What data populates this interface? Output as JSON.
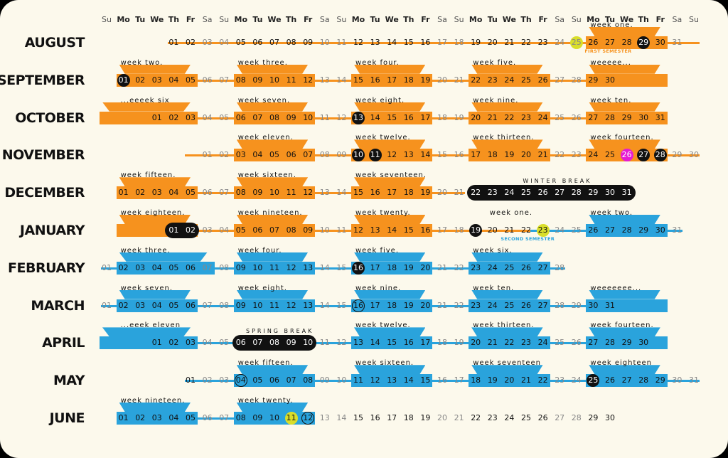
{
  "colors": {
    "fall": "#f6921e",
    "spring": "#2aa3dc",
    "highlight": "#d9de2a",
    "magenta": "#e61bd3",
    "dark": "#111111",
    "background": "#fcf9ec"
  },
  "weekday_headers": [
    "Su",
    "Mo",
    "Tu",
    "We",
    "Th",
    "Fr",
    "Sa",
    "Su",
    "Mo",
    "Tu",
    "We",
    "Th",
    "Fr",
    "Sa",
    "Su",
    "Mo",
    "Tu",
    "We",
    "Th",
    "Fr",
    "Sa",
    "Su",
    "Mo",
    "Tu",
    "We",
    "Th",
    "Fr",
    "Sa",
    "Su",
    "Mo",
    "Tu",
    "We",
    "Th",
    "Fr",
    "Sa",
    "Su"
  ],
  "months": [
    {
      "name": "AUGUST",
      "offset": 4,
      "days": 31,
      "color": "fall",
      "line": [
        4,
        35
      ],
      "blocks": [
        [
          29,
          33
        ]
      ],
      "weeks": [
        {
          "label": "week one.",
          "col": 29
        }
      ],
      "circled": [
        {
          "day": 25,
          "style": "highlight"
        },
        {
          "day": 29,
          "style": "dark"
        }
      ],
      "notes": [
        {
          "text": "FIRST SEMESTER",
          "col": 29,
          "color": "fall"
        }
      ],
      "pills": []
    },
    {
      "name": "SEPTEMBER",
      "offset": 1,
      "days": 30,
      "color": "fall",
      "line": [
        1,
        30
      ],
      "blocks": [
        [
          1,
          5
        ],
        [
          8,
          12
        ],
        [
          15,
          19
        ],
        [
          22,
          26
        ],
        [
          29,
          33
        ]
      ],
      "weeks": [
        {
          "label": "week two.",
          "col": 1
        },
        {
          "label": "week three.",
          "col": 8
        },
        {
          "label": "week four.",
          "col": 15
        },
        {
          "label": "week five.",
          "col": 22
        },
        {
          "label": "weeeee...",
          "col": 29
        }
      ],
      "circled": [
        {
          "day": 1,
          "style": "dark"
        }
      ],
      "notes": [],
      "pills": []
    },
    {
      "name": "OCTOBER",
      "offset": 3,
      "days": 31,
      "color": "fall",
      "line": [
        3,
        33
      ],
      "blocks": [
        [
          0,
          5
        ],
        [
          8,
          12
        ],
        [
          15,
          19
        ],
        [
          22,
          26
        ],
        [
          29,
          33
        ]
      ],
      "weeks": [
        {
          "label": "...eeeek six",
          "col": 1
        },
        {
          "label": "week seven.",
          "col": 8
        },
        {
          "label": "week eight.",
          "col": 15
        },
        {
          "label": "week nine.",
          "col": 22
        },
        {
          "label": "week ten.",
          "col": 29
        }
      ],
      "circled": [
        {
          "day": 13,
          "style": "dark"
        }
      ],
      "notes": [],
      "pills": []
    },
    {
      "name": "NOVEMBER",
      "offset": 6,
      "days": 30,
      "color": "fall",
      "line": [
        5,
        35
      ],
      "blocks": [
        [
          8,
          12
        ],
        [
          15,
          19
        ],
        [
          22,
          26
        ],
        [
          29,
          33
        ]
      ],
      "weeks": [
        {
          "label": "week eleven.",
          "col": 8
        },
        {
          "label": "week twelve.",
          "col": 15
        },
        {
          "label": "week thirteen.",
          "col": 22
        },
        {
          "label": "week fourteen.",
          "col": 29
        }
      ],
      "circled": [
        {
          "day": 10,
          "style": "dark"
        },
        {
          "day": 11,
          "style": "dark"
        },
        {
          "day": 26,
          "style": "magenta"
        },
        {
          "day": 27,
          "style": "dark"
        },
        {
          "day": 28,
          "style": "dark"
        }
      ],
      "notes": [],
      "pills": []
    },
    {
      "name": "DECEMBER",
      "offset": 1,
      "days": 31,
      "color": "fall",
      "line": [
        1,
        21
      ],
      "blocks": [
        [
          1,
          5
        ],
        [
          8,
          12
        ],
        [
          15,
          19
        ]
      ],
      "weeks": [
        {
          "label": "week fifteen.",
          "col": 1
        },
        {
          "label": "week sixteen.",
          "col": 8
        },
        {
          "label": "week seventeen.",
          "col": 15
        }
      ],
      "circled": [],
      "notes": [],
      "pills": [
        {
          "from": 22,
          "to": 31,
          "label": "WINTER BREAK"
        }
      ]
    },
    {
      "name": "JANUARY",
      "offset": 4,
      "days": 31,
      "color": "fall",
      "line": [
        1,
        34
      ],
      "blocks": [
        [
          1,
          5
        ],
        [
          8,
          12
        ],
        [
          15,
          19
        ],
        [
          29,
          33
        ]
      ],
      "blocks_spring_from": 23,
      "weeks": [
        {
          "label": "week eighteen.",
          "col": 1
        },
        {
          "label": "week nineteen.",
          "col": 8
        },
        {
          "label": "week twenty.",
          "col": 15
        },
        {
          "label": "week one.",
          "col": 23
        },
        {
          "label": "week two.",
          "col": 29
        }
      ],
      "circled": [
        {
          "day": 19,
          "style": "dark"
        },
        {
          "day": 23,
          "style": "highlight"
        }
      ],
      "notes": [
        {
          "text": "SECOND SEMESTER",
          "col": 24,
          "color": "spring"
        }
      ],
      "pills": [
        {
          "from": 1,
          "to": 2,
          "label": ""
        }
      ]
    },
    {
      "name": "FEBRUARY",
      "offset": 0,
      "days": 28,
      "color": "spring",
      "line": [
        0,
        27
      ],
      "blocks": [
        [
          1,
          6
        ],
        [
          8,
          12
        ],
        [
          15,
          19
        ],
        [
          22,
          26
        ]
      ],
      "weeks": [
        {
          "label": "week three.",
          "col": 1
        },
        {
          "label": "week four.",
          "col": 8
        },
        {
          "label": "week five.",
          "col": 15
        },
        {
          "label": "week six.",
          "col": 22
        }
      ],
      "circled": [
        {
          "day": 16,
          "style": "dark"
        }
      ],
      "notes": [],
      "pills": []
    },
    {
      "name": "MARCH",
      "offset": 0,
      "days": 31,
      "color": "spring",
      "line": [
        0,
        30
      ],
      "blocks": [
        [
          1,
          5
        ],
        [
          8,
          12
        ],
        [
          15,
          19
        ],
        [
          22,
          26
        ],
        [
          29,
          33
        ]
      ],
      "weeks": [
        {
          "label": "week seven.",
          "col": 1
        },
        {
          "label": "week eight.",
          "col": 8
        },
        {
          "label": "week nine.",
          "col": 15
        },
        {
          "label": "week ten.",
          "col": 22
        },
        {
          "label": "weeeeeee...",
          "col": 29
        }
      ],
      "circled": [
        {
          "day": 16,
          "style": "ring"
        }
      ],
      "notes": [],
      "pills": []
    },
    {
      "name": "APRIL",
      "offset": 3,
      "days": 30,
      "color": "spring",
      "line": [
        3,
        32
      ],
      "blocks": [
        [
          0,
          5
        ],
        [
          15,
          19
        ],
        [
          22,
          26
        ],
        [
          29,
          33
        ]
      ],
      "weeks": [
        {
          "label": "...eeek eleven",
          "col": 1
        },
        {
          "label": "week twelve.",
          "col": 15
        },
        {
          "label": "week thirteen.",
          "col": 22
        },
        {
          "label": "week fourteen.",
          "col": 29
        }
      ],
      "circled": [],
      "notes": [],
      "pills": [
        {
          "from": 6,
          "to": 10,
          "label": "SPRING BREAK"
        }
      ]
    },
    {
      "name": "MAY",
      "offset": 5,
      "days": 31,
      "color": "spring",
      "line": [
        5,
        35
      ],
      "blocks": [
        [
          8,
          12
        ],
        [
          15,
          19
        ],
        [
          22,
          26
        ],
        [
          29,
          33
        ]
      ],
      "weeks": [
        {
          "label": "week fifteen.",
          "col": 8
        },
        {
          "label": "week sixteen.",
          "col": 15
        },
        {
          "label": "week seventeen",
          "col": 22
        },
        {
          "label": "week eighteen",
          "col": 29
        }
      ],
      "circled": [
        {
          "day": 4,
          "style": "ring"
        },
        {
          "day": 25,
          "style": "dark"
        }
      ],
      "notes": [],
      "pills": []
    },
    {
      "name": "JUNE",
      "offset": 1,
      "days": 30,
      "color": "spring",
      "line": [
        1,
        12
      ],
      "blocks": [
        [
          1,
          5
        ],
        [
          8,
          12
        ]
      ],
      "weeks": [
        {
          "label": "week nineteen.",
          "col": 1
        },
        {
          "label": "week twenty.",
          "col": 8
        }
      ],
      "circled": [
        {
          "day": 11,
          "style": "highlight"
        },
        {
          "day": 12,
          "style": "ring"
        }
      ],
      "notes": [],
      "pills": []
    }
  ]
}
